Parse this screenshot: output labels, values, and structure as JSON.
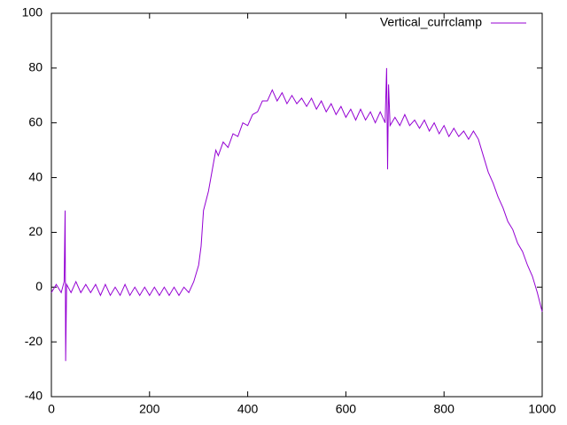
{
  "chart_data": {
    "type": "line",
    "x": [
      0,
      10,
      20,
      26,
      28,
      29,
      31,
      40,
      50,
      60,
      70,
      80,
      90,
      100,
      110,
      120,
      130,
      140,
      150,
      160,
      170,
      180,
      190,
      200,
      210,
      220,
      230,
      240,
      250,
      260,
      270,
      280,
      290,
      300,
      305,
      310,
      320,
      330,
      335,
      340,
      350,
      360,
      370,
      380,
      390,
      400,
      410,
      420,
      430,
      440,
      450,
      460,
      470,
      480,
      490,
      500,
      510,
      520,
      530,
      540,
      550,
      560,
      570,
      580,
      590,
      600,
      610,
      620,
      630,
      640,
      650,
      660,
      670,
      680,
      683,
      685,
      687,
      690,
      700,
      710,
      720,
      730,
      740,
      750,
      760,
      770,
      780,
      790,
      800,
      810,
      820,
      830,
      840,
      850,
      860,
      870,
      880,
      890,
      900,
      910,
      920,
      930,
      940,
      950,
      960,
      970,
      980,
      990,
      1000
    ],
    "series": [
      {
        "name": "Vertical_currclamp",
        "color": "#9400d3",
        "values": [
          -2,
          1,
          -2,
          2,
          28,
          -27,
          1,
          -2,
          2,
          -2,
          1,
          -2,
          1,
          -3,
          1,
          -3,
          0,
          -3,
          1,
          -3,
          0,
          -3,
          0,
          -3,
          0,
          -3,
          0,
          -3,
          0,
          -3,
          0,
          -2,
          2,
          8,
          15,
          28,
          35,
          45,
          50,
          48,
          53,
          51,
          56,
          55,
          60,
          59,
          63,
          64,
          68,
          68,
          72,
          68,
          71,
          67,
          70,
          67,
          69,
          66,
          69,
          65,
          68,
          64,
          67,
          63,
          66,
          62,
          65,
          61,
          65,
          61,
          64,
          60,
          64,
          60,
          80,
          43,
          74,
          59,
          62,
          59,
          63,
          59,
          61,
          58,
          61,
          57,
          60,
          56,
          59,
          55,
          58,
          55,
          57,
          54,
          57,
          54,
          48,
          42,
          38,
          33,
          29,
          24,
          21,
          16,
          13,
          8,
          4,
          -2,
          -9
        ]
      }
    ],
    "xlim": [
      0,
      1000
    ],
    "xticks": [
      0,
      200,
      400,
      600,
      800,
      1000
    ],
    "ylim": [
      -40,
      100
    ],
    "yticks": [
      -40,
      -20,
      0,
      20,
      40,
      60,
      80,
      100
    ],
    "grid": false,
    "legend": "top-right"
  }
}
